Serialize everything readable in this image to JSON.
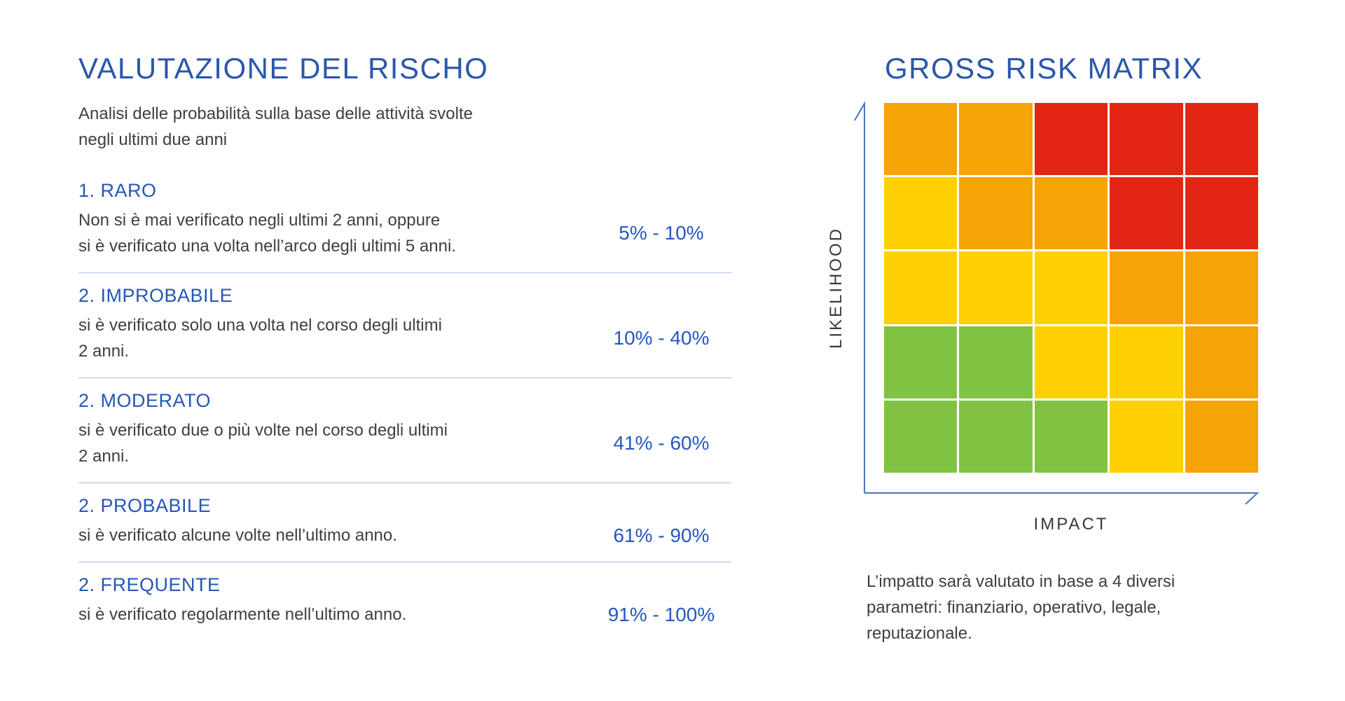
{
  "colors": {
    "title_blue": "#2B57AC",
    "heading_blue": "#2457B6",
    "range_blue": "#2457C2",
    "body_text": "#3F3F41",
    "axis_label_text": "#39393B",
    "separator": "#A9BFE4",
    "axis_line": "#4A74BE",
    "background": "#FFFFFF"
  },
  "left": {
    "title": "VALUTAZIONE DEL RISCHO",
    "subtitle": "Analisi delle probabilità sulla base delle attività svolte\nnegli ultimi due anni",
    "items": [
      {
        "label": "1. RARO",
        "description": "Non si è mai verificato negli ultimi 2 anni, oppure\nsi è verificato una volta nell’arco degli ultimi 5 anni.",
        "range": "5% - 10%"
      },
      {
        "label": "2. IMPROBABILE",
        "description": "si è verificato solo una volta nel corso degli ultimi\n2 anni.",
        "range": "10% - 40%"
      },
      {
        "label": "2. MODERATO",
        "description": "si è verificato due o più volte nel corso degli ultimi\n2 anni.",
        "range": "41% - 60%"
      },
      {
        "label": "2. PROBABILE",
        "description": "si è verificato alcune volte nell’ultimo anno.",
        "range": "61% - 90%"
      },
      {
        "label": "2. FREQUENTE",
        "description": "si è verificato regolarmente nell’ultimo anno.",
        "range": "91% - 100%"
      }
    ]
  },
  "right": {
    "title": "GROSS RISK MATRIX",
    "y_axis_label": "LIKELIHOOD",
    "x_axis_label": "IMPACT",
    "note": "L’impatto sarà valutato in base a 4 diversi\nparametri: finanziario, operativo, legale,\nreputazionale."
  },
  "chart_data": {
    "type": "heatmap",
    "title": "GROSS RISK MATRIX",
    "xlabel": "IMPACT",
    "ylabel": "LIKELIHOOD",
    "rows": 5,
    "cols": 5,
    "cells": [
      [
        "orange",
        "orange",
        "red",
        "red",
        "red"
      ],
      [
        "yellow",
        "orange",
        "orange",
        "red",
        "red"
      ],
      [
        "yellow",
        "yellow",
        "yellow",
        "orange",
        "orange"
      ],
      [
        "green",
        "green",
        "yellow",
        "yellow",
        "orange"
      ],
      [
        "green",
        "green",
        "green",
        "yellow",
        "orange"
      ]
    ],
    "palette": {
      "green": "#80C342",
      "yellow": "#FFD103",
      "orange": "#F6A405",
      "red": "#E32613"
    },
    "legend": "none",
    "grid_line_color": "#FFFFFF",
    "axis_arrows": true
  }
}
